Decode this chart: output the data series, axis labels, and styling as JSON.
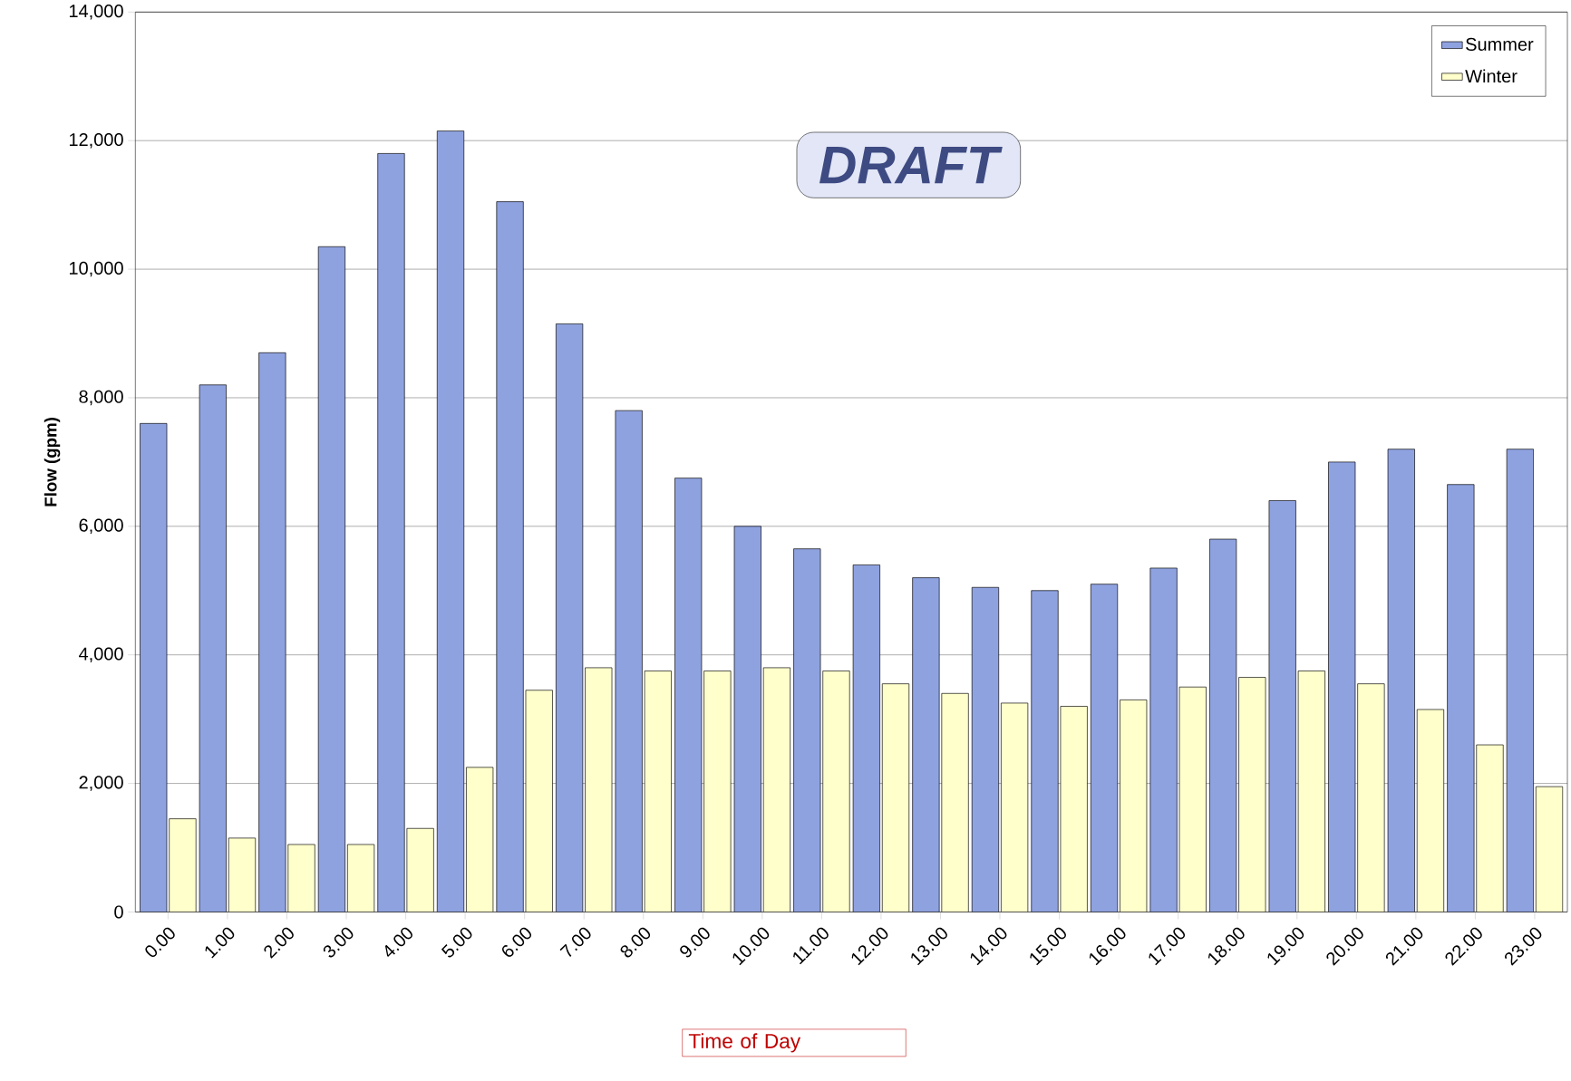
{
  "chart_data": {
    "type": "bar",
    "categories": [
      "0.00",
      "1.00",
      "2.00",
      "3.00",
      "4.00",
      "5.00",
      "6.00",
      "7.00",
      "8.00",
      "9.00",
      "10.00",
      "11.00",
      "12.00",
      "13.00",
      "14.00",
      "15.00",
      "16.00",
      "17.00",
      "18.00",
      "19.00",
      "20.00",
      "21.00",
      "22.00",
      "23.00"
    ],
    "series": [
      {
        "name": "Summer",
        "color": "#8fa2e0",
        "values": [
          7600,
          8200,
          8700,
          10350,
          11800,
          12150,
          11050,
          9150,
          7800,
          6750,
          6000,
          5650,
          5400,
          5200,
          5050,
          5000,
          5100,
          5350,
          5800,
          6400,
          7000,
          7200,
          6650,
          7200
        ]
      },
      {
        "name": "Winter",
        "color": "#ffffcc",
        "values": [
          1450,
          1150,
          1050,
          1050,
          1300,
          2250,
          3450,
          3800,
          3750,
          3750,
          3800,
          3750,
          3550,
          3400,
          3250,
          3200,
          3300,
          3500,
          3650,
          3750,
          3550,
          3150,
          2600,
          1950
        ]
      }
    ],
    "xlabel": "Time of Day",
    "ylabel": "Flow (gpm)",
    "ylim": [
      0,
      14000
    ],
    "yticks": [
      {
        "value": 0,
        "label": "0"
      },
      {
        "value": 2000,
        "label": "2,000"
      },
      {
        "value": 4000,
        "label": "4,000"
      },
      {
        "value": 6000,
        "label": "6,000"
      },
      {
        "value": 8000,
        "label": "8,000"
      },
      {
        "value": 10000,
        "label": "10,000"
      },
      {
        "value": 12000,
        "label": "12,000"
      },
      {
        "value": 14000,
        "label": "14,000"
      }
    ],
    "grid": "y",
    "legend": "top right",
    "annotations": [
      "DRAFT"
    ]
  }
}
